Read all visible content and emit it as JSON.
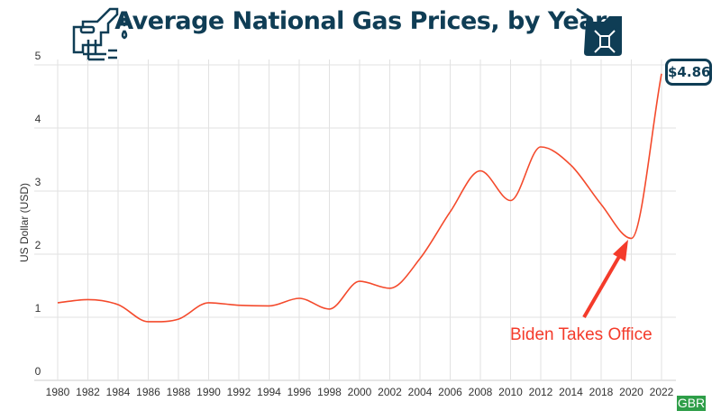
{
  "chart_data": {
    "type": "line",
    "title": "Average National Gas Prices, by Year",
    "ylabel": "US Dollar (USD)",
    "xlabel": "",
    "ylim": [
      0,
      5
    ],
    "yticks": [
      "0",
      "1",
      "2",
      "3",
      "4",
      "5"
    ],
    "grid": true,
    "categories": [
      "1980",
      "1982",
      "1984",
      "1986",
      "1988",
      "1990",
      "1992",
      "1994",
      "1996",
      "1998",
      "2000",
      "2002",
      "2004",
      "2006",
      "2008",
      "2010",
      "2012",
      "2014",
      "2018",
      "2020",
      "2022"
    ],
    "values": [
      1.23,
      1.28,
      1.2,
      0.93,
      0.97,
      1.23,
      1.19,
      1.18,
      1.3,
      1.13,
      1.57,
      1.46,
      1.93,
      2.67,
      3.32,
      2.85,
      3.7,
      3.41,
      2.79,
      2.25,
      4.86
    ],
    "line_color": "#f44a2c",
    "callout": "$4.86",
    "annotation": "Biden Takes Office",
    "annotation_color": "#f43b2b",
    "source_badge": "GBR"
  },
  "icons": {
    "left": "fuel-nozzle-icon",
    "right": "jerry-can-icon"
  },
  "colors": {
    "title": "#0f3d55",
    "badge": "#2e9e48"
  }
}
